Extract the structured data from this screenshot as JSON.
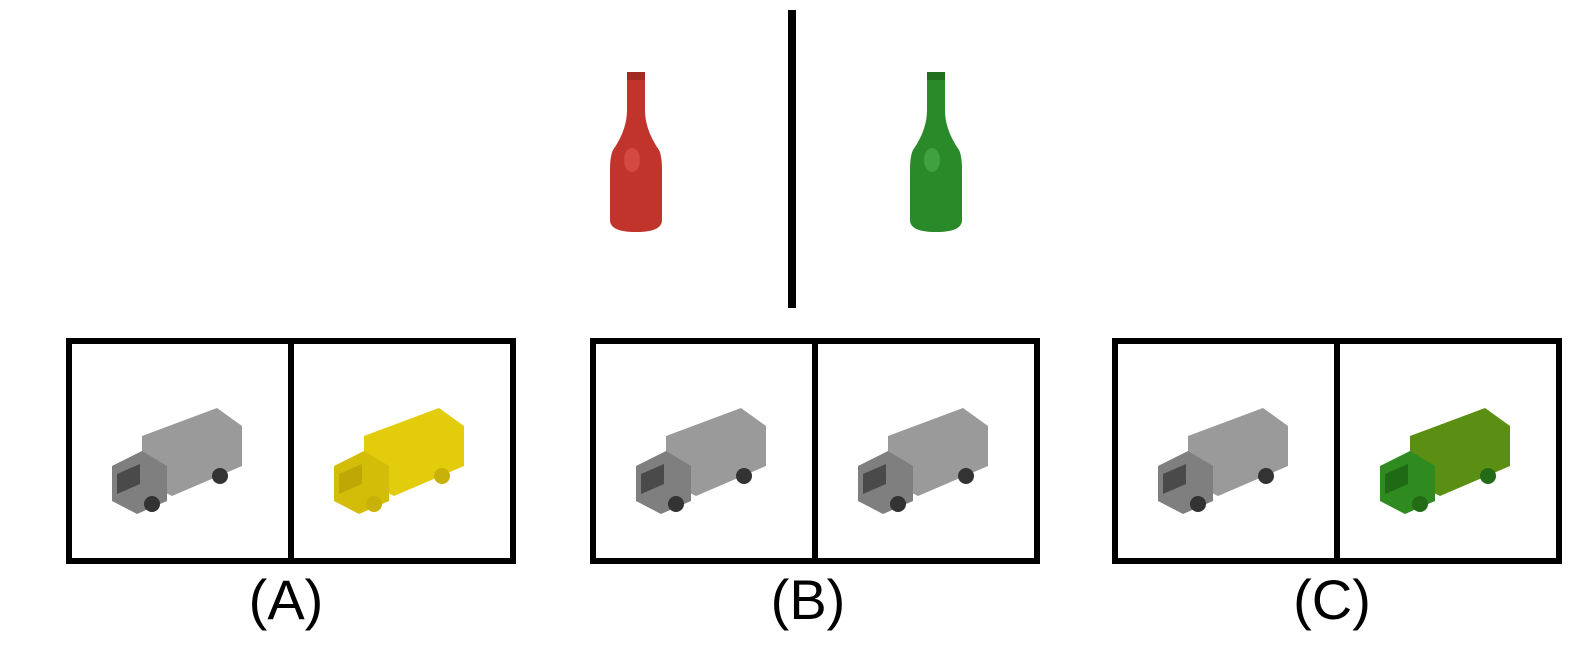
{
  "reference": {
    "left_bottle": {
      "color": "#c0342b",
      "icon": "red-bottle-icon"
    },
    "right_bottle": {
      "color": "#2a8a2a",
      "icon": "green-bottle-icon"
    }
  },
  "options": [
    {
      "label": "(A)",
      "left_truck_color": "#9a9a9a",
      "right_truck_color": "#e2cc0b"
    },
    {
      "label": "(B)",
      "left_truck_color": "#9a9a9a",
      "right_truck_color": "#9a9a9a"
    },
    {
      "label": "(C)",
      "left_truck_color": "#9a9a9a",
      "right_truck_color": "#4f8a12"
    }
  ]
}
